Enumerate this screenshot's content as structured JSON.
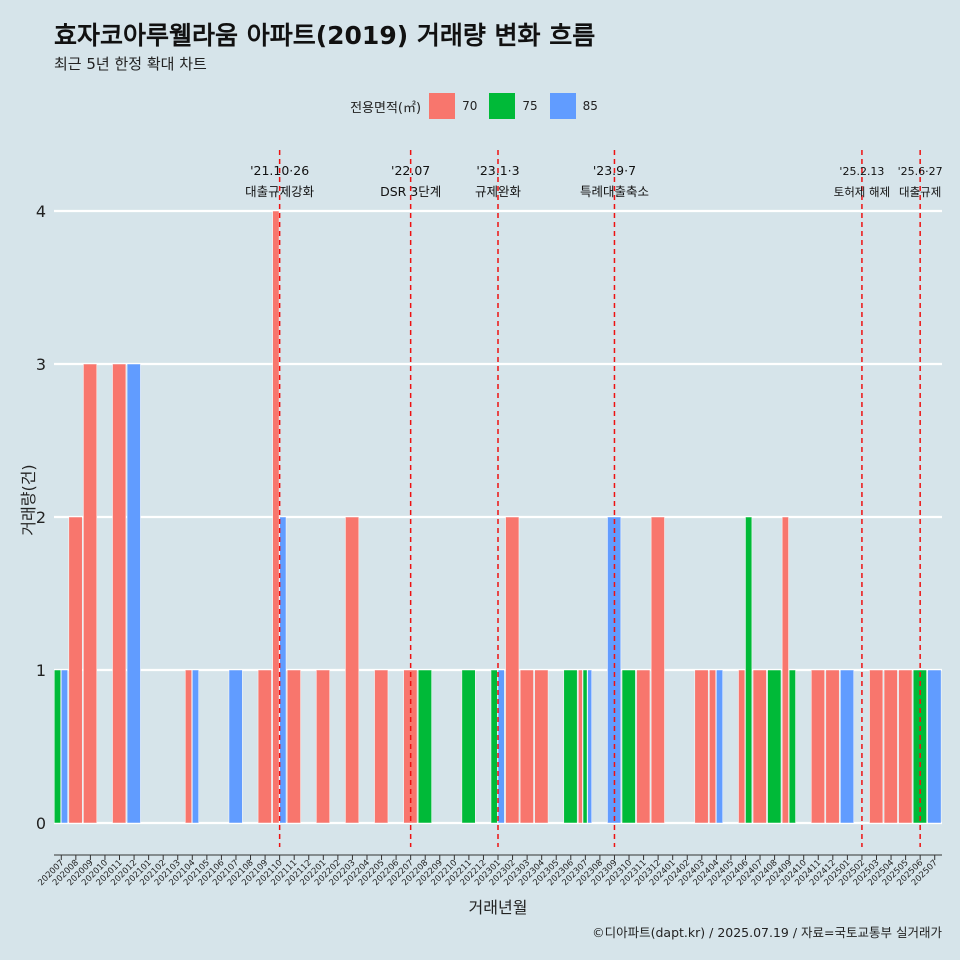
{
  "chart_data": {
    "type": "bar",
    "title": "효자코아루웰라움 아파트(2019) 거래량 변화 흐름",
    "subtitle": "최근 5년 한정 확대 차트",
    "xlabel": "거래년월",
    "ylabel": "거래량(건)",
    "ylim": [
      -0.2,
      4.4
    ],
    "yticks": [
      0,
      1,
      2,
      3,
      4
    ],
    "legend": {
      "title": "전용면적(㎡)",
      "position": "top"
    },
    "caption": "©디아파트(dapt.kr) / 2025.07.19 / 자료=국토교통부 실거래가",
    "categories": [
      "202007",
      "202008",
      "202009",
      "202010",
      "202011",
      "202012",
      "202101",
      "202102",
      "202103",
      "202104",
      "202105",
      "202106",
      "202107",
      "202108",
      "202109",
      "202110",
      "202111",
      "202112",
      "202201",
      "202202",
      "202203",
      "202204",
      "202205",
      "202206",
      "202207",
      "202208",
      "202209",
      "202210",
      "202211",
      "202212",
      "202301",
      "202302",
      "202303",
      "202304",
      "202305",
      "202306",
      "202307",
      "202308",
      "202309",
      "202310",
      "202311",
      "202312",
      "202401",
      "202402",
      "202403",
      "202404",
      "202405",
      "202406",
      "202407",
      "202408",
      "202409",
      "202410",
      "202411",
      "202412",
      "202501",
      "202502",
      "202503",
      "202504",
      "202505",
      "202506",
      "202507"
    ],
    "series": [
      {
        "name": "70",
        "color": "#f8766d",
        "values": [
          0,
          2,
          3,
          0,
          3,
          0,
          0,
          0,
          0,
          1,
          0,
          0,
          0,
          0,
          1,
          4,
          1,
          0,
          1,
          0,
          2,
          0,
          1,
          0,
          1,
          0,
          0,
          0,
          0,
          0,
          0,
          2,
          1,
          1,
          0,
          0,
          1,
          0,
          0,
          0,
          1,
          2,
          0,
          0,
          1,
          1,
          0,
          1,
          1,
          0,
          2,
          0,
          1,
          1,
          0,
          0,
          1,
          1,
          1,
          0,
          0
        ]
      },
      {
        "name": "75",
        "color": "#00ba38",
        "values": [
          1,
          0,
          0,
          0,
          0,
          0,
          0,
          0,
          0,
          0,
          0,
          0,
          0,
          0,
          0,
          0,
          0,
          0,
          0,
          0,
          0,
          0,
          0,
          0,
          0,
          1,
          0,
          0,
          1,
          0,
          1,
          0,
          0,
          0,
          0,
          1,
          1,
          0,
          0,
          1,
          0,
          0,
          0,
          0,
          0,
          0,
          0,
          2,
          0,
          1,
          1,
          0,
          0,
          0,
          0,
          0,
          0,
          0,
          0,
          1,
          0
        ]
      },
      {
        "name": "85",
        "color": "#619cff",
        "values": [
          1,
          0,
          0,
          0,
          0,
          3,
          0,
          0,
          0,
          1,
          0,
          0,
          1,
          0,
          0,
          2,
          0,
          0,
          0,
          0,
          0,
          0,
          0,
          0,
          0,
          0,
          0,
          0,
          0,
          0,
          1,
          0,
          0,
          0,
          0,
          0,
          1,
          0,
          2,
          0,
          0,
          0,
          0,
          0,
          0,
          1,
          0,
          0,
          0,
          0,
          0,
          0,
          0,
          0,
          1,
          0,
          0,
          0,
          0,
          0,
          1
        ]
      }
    ],
    "annotations": [
      {
        "month": "202110",
        "date": "'21.10·26",
        "label": "대출규제강화"
      },
      {
        "month": "202207",
        "date": "'22.07",
        "label": "DSR 3단계"
      },
      {
        "month": "202301",
        "date": "'23.1·3",
        "label": "규제완화"
      },
      {
        "month": "202309",
        "date": "'23.9·7",
        "label": "특례대출축소"
      },
      {
        "month": "202502",
        "date": "'25.2.13",
        "label": "토허제 해제"
      },
      {
        "month": "202506",
        "date": "'25.6·27",
        "label": "대출규제"
      }
    ]
  }
}
